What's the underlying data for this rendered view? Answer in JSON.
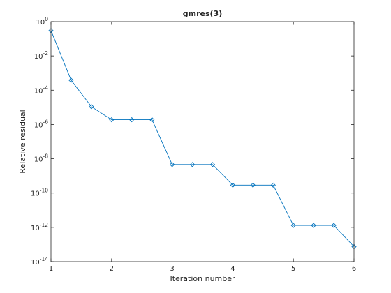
{
  "chart_data": {
    "type": "line",
    "title": "gmres(3)",
    "xlabel": "Iteration number",
    "ylabel": "Relative residual",
    "xlim": [
      1,
      6
    ],
    "ylim_log10": [
      -14,
      0
    ],
    "yscale": "log",
    "grid": false,
    "legend": "none",
    "marker": "diamond",
    "series_color": "#0072bd",
    "x_ticks": [
      "1",
      "2",
      "3",
      "4",
      "5",
      "6"
    ],
    "y_ticks": [
      {
        "base": "10",
        "exp": "0"
      },
      {
        "base": "10",
        "exp": "-2"
      },
      {
        "base": "10",
        "exp": "-4"
      },
      {
        "base": "10",
        "exp": "-6"
      },
      {
        "base": "10",
        "exp": "-8"
      },
      {
        "base": "10",
        "exp": "-10"
      },
      {
        "base": "10",
        "exp": "-12"
      },
      {
        "base": "10",
        "exp": "-14"
      }
    ],
    "series": [
      {
        "x": [
          1,
          1.333,
          1.667,
          2,
          2.333,
          2.667,
          3,
          3.333,
          3.667,
          4,
          4.333,
          4.667,
          5,
          5.333,
          5.667,
          6
        ],
        "y": [
          0.3,
          0.00038,
          1.1e-05,
          1.9e-06,
          1.9e-06,
          1.9e-06,
          4.6e-09,
          4.6e-09,
          4.6e-09,
          2.9e-10,
          2.9e-10,
          2.9e-10,
          1.3e-12,
          1.3e-12,
          1.3e-12,
          7.5e-14
        ]
      }
    ]
  }
}
